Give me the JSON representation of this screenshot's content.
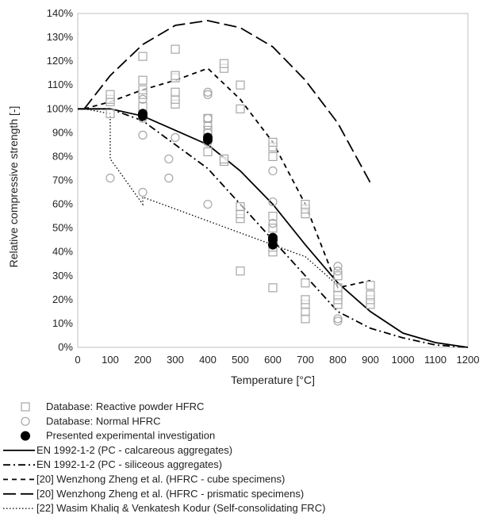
{
  "chart_data": {
    "type": "scatter",
    "xlabel": "Temperature [°C]",
    "ylabel": "Relative  compressive strength [-]",
    "xlim": [
      0,
      1200
    ],
    "ylim": [
      0,
      140
    ],
    "xticks": [
      "0",
      "100",
      "200",
      "300",
      "400",
      "500",
      "600",
      "700",
      "800",
      "900",
      "1000",
      "1100",
      "1200"
    ],
    "yticks": [
      "0%",
      "10%",
      "20%",
      "30%",
      "40%",
      "50%",
      "60%",
      "70%",
      "80%",
      "90%",
      "100%",
      "110%",
      "120%",
      "130%",
      "140%"
    ],
    "grid": false,
    "legend_position": "bottom",
    "scatter_series": [
      {
        "name": "Database: Reactive powder HFRC",
        "marker": "square",
        "color": "#a6a6a6",
        "points": [
          [
            100,
            98
          ],
          [
            100,
            103
          ],
          [
            100,
            104
          ],
          [
            100,
            106
          ],
          [
            200,
            101
          ],
          [
            200,
            106
          ],
          [
            200,
            108
          ],
          [
            200,
            112
          ],
          [
            200,
            122
          ],
          [
            300,
            102
          ],
          [
            300,
            104
          ],
          [
            300,
            107
          ],
          [
            300,
            113
          ],
          [
            300,
            114
          ],
          [
            300,
            125
          ],
          [
            400,
            82
          ],
          [
            400,
            88
          ],
          [
            400,
            91
          ],
          [
            400,
            96
          ],
          [
            450,
            78
          ],
          [
            450,
            79
          ],
          [
            450,
            117
          ],
          [
            450,
            119
          ],
          [
            500,
            32
          ],
          [
            500,
            54
          ],
          [
            500,
            56
          ],
          [
            500,
            59
          ],
          [
            500,
            100
          ],
          [
            500,
            110
          ],
          [
            600,
            25
          ],
          [
            600,
            40
          ],
          [
            600,
            42
          ],
          [
            600,
            50
          ],
          [
            600,
            55
          ],
          [
            600,
            80
          ],
          [
            600,
            84
          ],
          [
            600,
            86
          ],
          [
            700,
            12
          ],
          [
            700,
            15
          ],
          [
            700,
            18
          ],
          [
            700,
            20
          ],
          [
            700,
            27
          ],
          [
            700,
            56
          ],
          [
            700,
            58
          ],
          [
            700,
            60
          ],
          [
            800,
            18
          ],
          [
            800,
            20
          ],
          [
            800,
            22
          ],
          [
            800,
            25
          ],
          [
            800,
            30
          ],
          [
            900,
            18
          ],
          [
            900,
            20
          ],
          [
            900,
            22
          ],
          [
            900,
            26
          ]
        ]
      },
      {
        "name": "Database: Normal HFRC",
        "marker": "circle",
        "color": "#a6a6a6",
        "points": [
          [
            100,
            71
          ],
          [
            200,
            65
          ],
          [
            200,
            89
          ],
          [
            200,
            96
          ],
          [
            200,
            104
          ],
          [
            280,
            71
          ],
          [
            280,
            79
          ],
          [
            300,
            88
          ],
          [
            400,
            60
          ],
          [
            400,
            86
          ],
          [
            400,
            90
          ],
          [
            400,
            93
          ],
          [
            400,
            96
          ],
          [
            400,
            106
          ],
          [
            400,
            107
          ],
          [
            600,
            44
          ],
          [
            600,
            45
          ],
          [
            600,
            52
          ],
          [
            600,
            61
          ],
          [
            600,
            74
          ],
          [
            800,
            11
          ],
          [
            800,
            12
          ],
          [
            800,
            32
          ],
          [
            800,
            34
          ]
        ]
      },
      {
        "name": "Presented experimental investigation",
        "marker": "dot",
        "color": "#000000",
        "points": [
          [
            200,
            97
          ],
          [
            200,
            98
          ],
          [
            400,
            87
          ],
          [
            400,
            88
          ],
          [
            600,
            43
          ],
          [
            600,
            45
          ],
          [
            600,
            46
          ]
        ]
      }
    ],
    "line_series": [
      {
        "name": "EN 1992-1-2 (PC - calcareous aggregates)",
        "dash": "solid",
        "x": [
          0,
          100,
          200,
          300,
          400,
          500,
          600,
          700,
          800,
          900,
          1000,
          1100,
          1200
        ],
        "y": [
          100,
          100,
          97,
          91,
          85,
          74,
          60,
          43,
          27,
          15,
          6,
          2,
          0
        ]
      },
      {
        "name": "EN 1992-1-2  (PC - siliceous aggregates)",
        "dash": "dashdot",
        "x": [
          0,
          100,
          200,
          300,
          400,
          500,
          600,
          700,
          800,
          900,
          1000,
          1100,
          1200
        ],
        "y": [
          100,
          100,
          95,
          85,
          75,
          60,
          45,
          30,
          15,
          8,
          4,
          1,
          0
        ]
      },
      {
        "name": "[20] Wenzhong Zheng et al. (HFRC - cube specimens)",
        "dash": "dashed",
        "x": [
          20,
          100,
          200,
          300,
          400,
          500,
          600,
          700,
          800,
          900
        ],
        "y": [
          100,
          103,
          108,
          112,
          117,
          104,
          86,
          60,
          25,
          28
        ]
      },
      {
        "name": "[20] Wenzhong Zheng et al. (HFRC - prismatic specimens)",
        "dash": "longdash",
        "x": [
          20,
          100,
          200,
          300,
          400,
          500,
          600,
          700,
          800,
          900
        ],
        "y": [
          100,
          114,
          127,
          135,
          137,
          134,
          126,
          112,
          94,
          69
        ]
      },
      {
        "name": "[22] Wasim Khaliq & Venkatesh Kodur (Self-consolidating FRC)",
        "dash": "dotted",
        "x": [
          20,
          100,
          100,
          200,
          200,
          400,
          600,
          700,
          800
        ],
        "y": [
          100,
          98,
          79,
          60,
          63,
          53,
          43,
          38,
          26
        ]
      }
    ]
  }
}
